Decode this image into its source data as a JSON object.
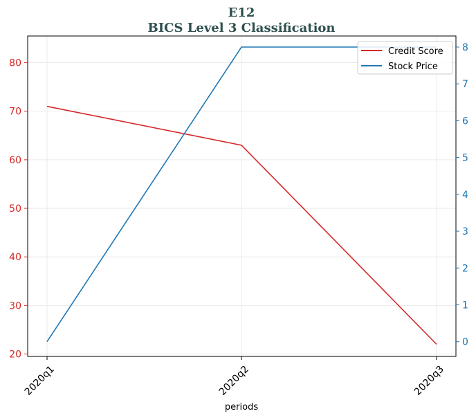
{
  "chart_data": {
    "type": "line",
    "title": "E12",
    "subtitle": "BICS Level 3 Classification",
    "xlabel": "periods",
    "categories": [
      "2020q1",
      "2020q2",
      "2020q3"
    ],
    "grid": true,
    "legend_position": "top-right",
    "y_left": {
      "ylim": [
        19.5,
        85.5
      ],
      "ticks": [
        20,
        30,
        40,
        50,
        60,
        70,
        80
      ],
      "color": "#d62728"
    },
    "y_right": {
      "ylim": [
        -0.4,
        8.3
      ],
      "ticks": [
        0,
        1,
        2,
        3,
        4,
        5,
        6,
        7,
        8
      ],
      "color": "#1f77b4"
    },
    "series": [
      {
        "name": "Credit Score",
        "axis": "left",
        "color": "#d62728",
        "values": [
          71,
          63,
          22
        ]
      },
      {
        "name": "Stock Price",
        "axis": "right",
        "color": "#1f77b4",
        "values": [
          0,
          8,
          8
        ]
      }
    ]
  }
}
